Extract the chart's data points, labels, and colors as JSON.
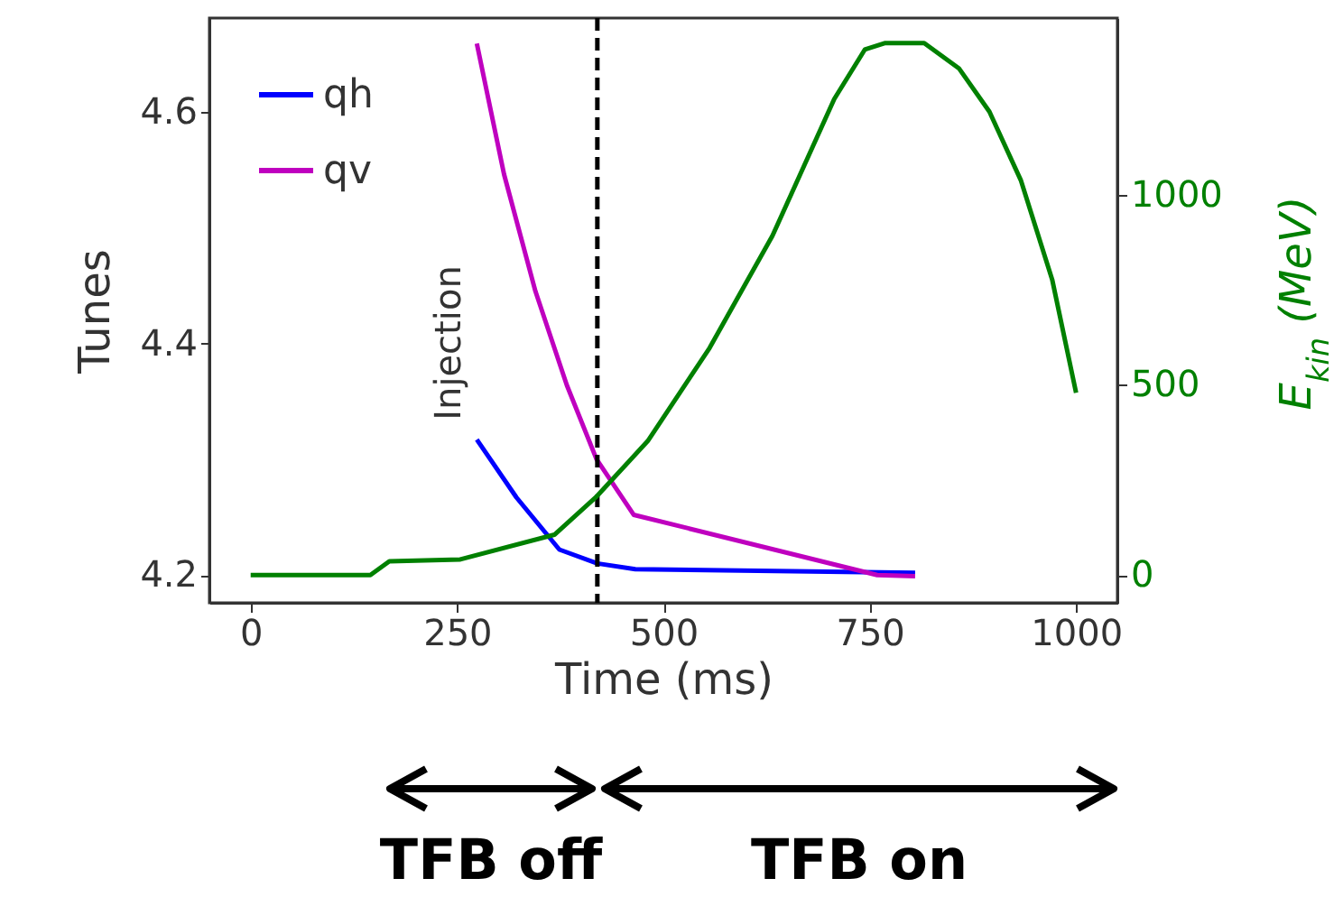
{
  "chart_data": {
    "type": "line",
    "xlabel": "Time (ms)",
    "ylabel": "Tunes",
    "y2label": "E$_{kin}$ (MeV)",
    "xlim": [
      -50,
      1050
    ],
    "xticks": [
      0,
      250,
      500,
      750,
      1000
    ],
    "ylim": [
      4.176,
      4.681
    ],
    "yticks": [
      4.2,
      4.4,
      4.6
    ],
    "y2lim": [
      -73,
      1464
    ],
    "y2ticks": [
      0,
      500,
      1000
    ],
    "legend": "top left",
    "series": [
      {
        "name": "qh",
        "color": "#0000ff",
        "x": [
          274,
          322,
          374,
          420,
          466,
          805
        ],
        "values": [
          4.317,
          4.267,
          4.222,
          4.21,
          4.205,
          4.202
        ]
      },
      {
        "name": "qv",
        "color": "#bf00bf",
        "x": [
          274,
          307,
          345,
          383,
          419,
          464,
          759,
          805
        ],
        "values": [
          4.659,
          4.546,
          4.445,
          4.364,
          4.3,
          4.252,
          4.2,
          4.199
        ]
      },
      {
        "axis": "y2",
        "color": "#008000",
        "x": [
          0,
          145,
          168,
          254,
          368,
          418,
          481,
          556,
          632,
          707,
          744,
          768,
          816,
          858,
          895,
          933,
          971,
          1000
        ],
        "values": [
          0,
          0,
          36,
          41,
          106,
          204,
          352,
          597,
          891,
          1251,
          1381,
          1398,
          1398,
          1332,
          1218,
          1038,
          777,
          479
        ]
      }
    ],
    "ref_lines": [
      {
        "axis": "x",
        "value": 420,
        "color": "#000000",
        "line_style": "dashed"
      }
    ],
    "annotations": [
      "Injection",
      "TFB off",
      "TFB on"
    ]
  }
}
